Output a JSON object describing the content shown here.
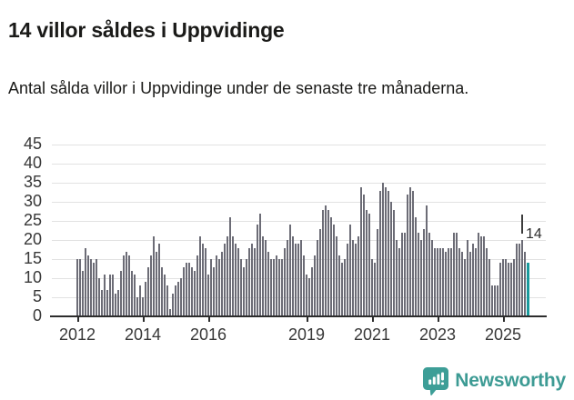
{
  "header": {
    "title": "14 villor såldes i Uppvidinge",
    "subtitle": "Antal sålda villor i Uppvidinge under de senaste tre månaderna."
  },
  "chart_data": {
    "type": "bar",
    "title": "14 villor såldes i Uppvidinge",
    "subtitle": "Antal sålda villor i Uppvidinge under de senaste tre månaderna.",
    "x_start_month": "2012-01",
    "x_end_month": "2025-10",
    "x_tick_labels": [
      "2012",
      "2014",
      "2016",
      "2019",
      "2021",
      "2023",
      "2025"
    ],
    "y_ticks": [
      0,
      5,
      10,
      15,
      20,
      25,
      30,
      35,
      40,
      45
    ],
    "ylim": [
      0,
      45
    ],
    "grid": "horizontal",
    "legend": "none",
    "values": [
      15,
      15,
      12,
      18,
      16,
      15,
      14,
      15,
      10,
      7,
      11,
      7,
      11,
      11,
      6,
      7,
      12,
      16,
      17,
      16,
      12,
      11,
      5,
      8,
      5,
      9,
      13,
      16,
      21,
      17,
      19,
      13,
      11,
      8,
      2,
      6,
      8,
      9,
      10,
      13,
      14,
      14,
      13,
      12,
      16,
      21,
      19,
      18,
      11,
      15,
      13,
      16,
      15,
      17,
      19,
      21,
      26,
      21,
      19,
      18,
      15,
      13,
      15,
      18,
      19,
      18,
      24,
      27,
      21,
      20,
      17,
      15,
      15,
      16,
      15,
      15,
      18,
      20,
      24,
      21,
      19,
      19,
      20,
      16,
      11,
      10,
      13,
      16,
      20,
      23,
      28,
      29,
      28,
      26,
      24,
      21,
      16,
      14,
      15,
      19,
      24,
      20,
      19,
      21,
      34,
      32,
      28,
      27,
      15,
      14,
      23,
      33,
      35,
      34,
      33,
      30,
      28,
      20,
      18,
      22,
      22,
      32,
      34,
      33,
      26,
      22,
      20,
      23,
      29,
      22,
      20,
      18,
      18,
      18,
      18,
      17,
      18,
      18,
      22,
      22,
      18,
      17,
      15,
      20,
      17,
      19,
      18,
      22,
      21,
      21,
      18,
      15,
      8,
      8,
      8,
      14,
      15,
      15,
      14,
      14,
      15,
      19,
      19,
      20,
      17,
      14
    ],
    "highlight": {
      "index_from_end": 1,
      "value": 14,
      "label": "14"
    },
    "colors": {
      "bar": "#6c6c76",
      "highlight": "#199a9c",
      "gridline": "#e2e2e2",
      "axis": "#2d2d2d",
      "text": "#1a1a18"
    }
  },
  "annotation": {
    "label": "14"
  },
  "footer": {
    "brand": "Newsworthy",
    "brand_color": "#3d9b94",
    "logo_icon": "bar-chart-bubble-icon"
  }
}
